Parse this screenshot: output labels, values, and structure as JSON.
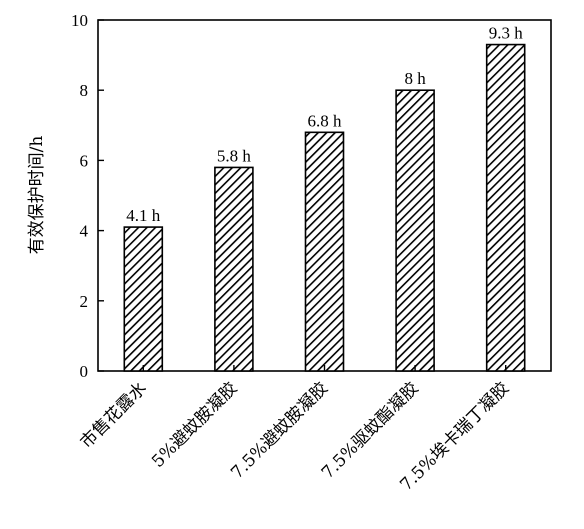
{
  "chart_data": {
    "type": "bar",
    "title": "",
    "xlabel": "",
    "ylabel": "有效保护时间/h",
    "ylim": [
      0,
      10
    ],
    "yticks": [
      0,
      2,
      4,
      6,
      8,
      10
    ],
    "categories": [
      "市售花露水",
      "5%避蚊胺凝胶",
      "7.5%避蚊胺凝胶",
      "7.5%驱蚊酯凝胶",
      "7.5%埃卡瑞丁凝胶"
    ],
    "values": [
      4.1,
      5.8,
      6.8,
      8,
      9.3
    ],
    "data_labels": [
      "4.1 h",
      "5.8 h",
      "6.8 h",
      "8 h",
      "9.3 h"
    ],
    "bar_fill": "hatched-diagonal",
    "bar_color": "#000000",
    "grid": false,
    "legend": "none"
  }
}
